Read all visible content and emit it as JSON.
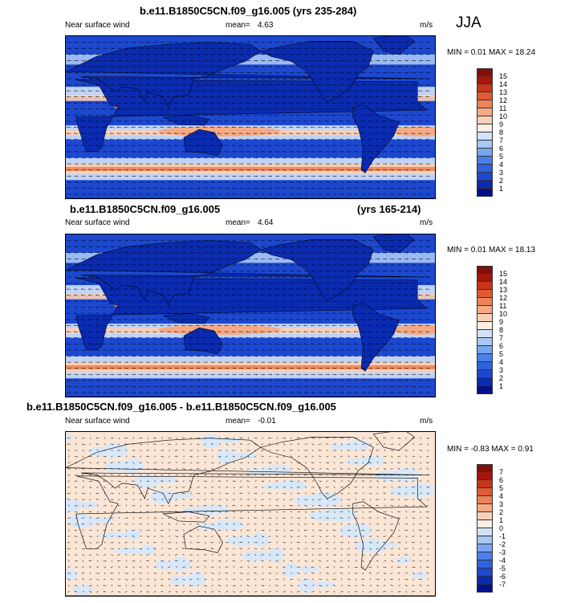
{
  "season": "JJA",
  "panels": [
    {
      "title_left": "b.e11.B1850C5CN.f09_g16.005 (yrs 235-284)",
      "title_right": "",
      "variable": "Near surface wind",
      "mean_label": "mean=",
      "mean": "4.63",
      "units": "m/s",
      "minmax": "MIN =  0.01 MAX =  18.24",
      "colorbar_labels": [
        "15",
        "14",
        "13",
        "12",
        "11",
        "10",
        "9",
        "8",
        "7",
        "6",
        "5",
        "4",
        "3",
        "2",
        "1"
      ]
    },
    {
      "title_left": "b.e11.B1850C5CN.f09_g16.005",
      "title_right": "(yrs 165-214)",
      "variable": "Near surface wind",
      "mean_label": "mean=",
      "mean": "4.64",
      "units": "m/s",
      "minmax": "MIN =  0.01 MAX =  18.13",
      "colorbar_labels": [
        "15",
        "14",
        "13",
        "12",
        "11",
        "10",
        "9",
        "8",
        "7",
        "6",
        "5",
        "4",
        "3",
        "2",
        "1"
      ]
    },
    {
      "title_left": "b.e11.B1850C5CN.f09_g16.005 - b.e11.B1850C5CN.f09_g16.005",
      "title_right": "",
      "variable": "Near surface wind",
      "mean_label": "mean=",
      "mean": "-0.01",
      "units": "m/s",
      "minmax": "MIN = -0.83 MAX =  0.91",
      "colorbar_labels": [
        "7",
        "6",
        "5",
        "4",
        "3",
        "2",
        "1",
        "0",
        "-1",
        "-2",
        "-3",
        "-4",
        "-5",
        "-6",
        "-7"
      ]
    }
  ],
  "colors": {
    "abs_scale": [
      "#050f8c",
      "#0a2bb0",
      "#1c48d0",
      "#2f62e0",
      "#4a80ea",
      "#78a5f0",
      "#a8c6f6",
      "#d3e2fa",
      "#fbeee4",
      "#f9d0b6",
      "#f5aa84",
      "#ee8358",
      "#e05a34",
      "#c8351a",
      "#a5160b",
      "#800f0a"
    ],
    "diff_scale": [
      "#050f8c",
      "#0a2bb0",
      "#1c48d0",
      "#2f62e0",
      "#4a80ea",
      "#78a5f0",
      "#a8c6f6",
      "#d3e2fa",
      "#fbeee4",
      "#f9d0b6",
      "#f5aa84",
      "#ee8358",
      "#e05a34",
      "#c8351a",
      "#a5160b",
      "#800f0a"
    ],
    "land_low": "#1a3fb8",
    "land_mid": "#2a55d2",
    "diff_pos": "#fbe6d6",
    "diff_neg": "#d9e8f8"
  }
}
